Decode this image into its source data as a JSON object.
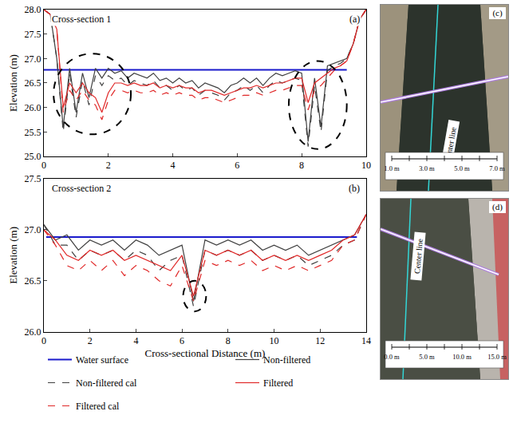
{
  "chart_data": [
    {
      "type": "line",
      "title": "Cross-section 1",
      "panel": "(a)",
      "y_label": "Elevation (m)",
      "xlim": [
        0,
        10
      ],
      "xticks": [
        0,
        2,
        4,
        6,
        8,
        10
      ],
      "ylim": [
        25,
        28
      ],
      "yticks": [
        {
          "value": 25,
          "label": "25.0"
        },
        {
          "value": 25.5,
          "label": "25.5"
        },
        {
          "value": 26,
          "label": "26.0"
        },
        {
          "value": 26.5,
          "label": "26.5"
        },
        {
          "value": 27,
          "label": "27.0"
        },
        {
          "value": 27.5,
          "label": "27.5"
        },
        {
          "value": 28,
          "label": "28.0"
        }
      ],
      "grid": false,
      "legend": "bottom",
      "x": [
        0,
        0.2,
        0.4,
        0.6,
        0.8,
        1.0,
        1.2,
        1.4,
        1.6,
        1.8,
        2.0,
        2.2,
        2.4,
        2.6,
        2.8,
        3.0,
        3.2,
        3.4,
        3.6,
        3.8,
        4.0,
        4.2,
        4.4,
        4.6,
        4.8,
        5.0,
        5.2,
        5.4,
        5.6,
        5.8,
        6.0,
        6.2,
        6.4,
        6.6,
        6.8,
        7.0,
        7.2,
        7.4,
        7.6,
        7.8,
        8.0,
        8.2,
        8.4,
        8.6,
        8.8,
        9.0,
        9.2,
        9.4,
        9.6,
        9.8,
        10.0
      ],
      "series": [
        {
          "name": "Water surface",
          "color": "#1a1acc",
          "line_style": "solid",
          "x": [
            0,
            9.4
          ],
          "values": [
            26.77,
            26.77
          ]
        },
        {
          "name": "Non-filtered",
          "color": "#404040",
          "line_style": "solid",
          "values": [
            28.0,
            27.9,
            27.0,
            25.6,
            26.8,
            25.9,
            26.7,
            26.2,
            26.8,
            26.6,
            26.8,
            26.7,
            26.75,
            26.6,
            26.7,
            26.65,
            26.6,
            26.7,
            26.55,
            26.6,
            26.5,
            26.6,
            26.5,
            26.55,
            26.4,
            26.5,
            26.45,
            26.4,
            26.3,
            26.45,
            26.5,
            26.6,
            26.5,
            26.6,
            26.45,
            26.6,
            26.7,
            26.65,
            26.7,
            26.75,
            26.7,
            25.3,
            26.6,
            25.6,
            26.85,
            26.9,
            26.95,
            27.0,
            27.3,
            27.8,
            28.0
          ]
        },
        {
          "name": "Non-filtered cal",
          "color": "#404040",
          "line_style": "dash",
          "values": [
            28.0,
            27.9,
            27.0,
            25.5,
            26.7,
            25.8,
            26.55,
            26.05,
            26.65,
            26.45,
            26.65,
            26.55,
            26.6,
            26.45,
            26.55,
            26.5,
            26.45,
            26.55,
            26.4,
            26.45,
            26.35,
            26.45,
            26.35,
            26.4,
            26.25,
            26.35,
            26.3,
            26.25,
            26.15,
            26.3,
            26.35,
            26.45,
            26.35,
            26.45,
            26.3,
            26.45,
            26.55,
            26.5,
            26.55,
            26.6,
            26.55,
            25.2,
            26.45,
            25.5,
            26.75,
            26.85,
            26.9,
            27.0,
            27.3,
            27.8,
            28.0
          ]
        },
        {
          "name": "Filtered",
          "color": "#e02828",
          "line_style": "solid",
          "values": [
            28.0,
            27.9,
            27.6,
            26.0,
            26.5,
            26.3,
            26.5,
            26.3,
            26.2,
            25.9,
            26.3,
            26.5,
            26.5,
            26.45,
            26.5,
            26.45,
            26.45,
            26.5,
            26.4,
            26.45,
            26.4,
            26.45,
            26.4,
            26.4,
            26.3,
            26.35,
            26.35,
            26.3,
            26.25,
            26.3,
            26.35,
            26.4,
            26.4,
            26.45,
            26.4,
            26.45,
            26.5,
            26.5,
            26.55,
            26.6,
            26.6,
            26.1,
            26.5,
            26.6,
            26.7,
            26.8,
            26.85,
            26.95,
            27.3,
            27.8,
            28.0
          ]
        },
        {
          "name": "Filtered cal",
          "color": "#e02828",
          "line_style": "dash",
          "values": [
            28.0,
            27.9,
            27.6,
            25.9,
            26.35,
            26.15,
            26.35,
            26.15,
            26.05,
            25.75,
            26.15,
            26.35,
            26.35,
            26.3,
            26.35,
            26.3,
            26.3,
            26.35,
            26.25,
            26.3,
            26.25,
            26.3,
            26.25,
            26.25,
            26.15,
            26.2,
            26.2,
            26.15,
            26.1,
            26.15,
            26.2,
            26.25,
            26.25,
            26.3,
            26.25,
            26.3,
            26.35,
            26.35,
            26.4,
            26.45,
            26.45,
            25.95,
            26.35,
            26.45,
            26.6,
            26.75,
            26.85,
            26.95,
            27.3,
            27.8,
            28.0
          ]
        }
      ],
      "highlights": [
        {
          "x": [
            0.3,
            2.7
          ],
          "y": [
            25.45,
            27.1
          ]
        },
        {
          "x": [
            7.6,
            9.4
          ],
          "y": [
            25.15,
            26.95
          ]
        }
      ]
    },
    {
      "type": "line",
      "title": "Cross-section 2",
      "panel": "(b)",
      "x_label": "Cross-sectional Distance (m)",
      "y_label": "Elevation (m)",
      "xlim": [
        0,
        14
      ],
      "xticks": [
        0,
        2,
        4,
        6,
        8,
        10,
        12,
        14
      ],
      "ylim": [
        26,
        27.5
      ],
      "yticks": [
        {
          "value": 26,
          "label": "26.0"
        },
        {
          "value": 26.5,
          "label": "26.5"
        },
        {
          "value": 27,
          "label": "27.0"
        },
        {
          "value": 27.5,
          "label": "27.5"
        }
      ],
      "grid": false,
      "x": [
        0,
        0.5,
        1,
        1.5,
        2,
        2.5,
        3,
        3.5,
        4,
        4.5,
        5,
        5.5,
        6,
        6.5,
        7,
        7.5,
        8,
        8.5,
        9,
        9.5,
        10,
        10.5,
        11,
        11.5,
        12,
        12.5,
        13,
        13.5,
        14
      ],
      "series": [
        {
          "name": "Water surface",
          "color": "#1a1acc",
          "line_style": "solid",
          "x": [
            0.1,
            13.6
          ],
          "values": [
            26.93,
            26.93
          ]
        },
        {
          "name": "Non-filtered",
          "color": "#404040",
          "line_style": "solid",
          "values": [
            27.05,
            26.9,
            26.95,
            26.8,
            26.9,
            26.85,
            26.9,
            26.8,
            26.9,
            26.85,
            26.75,
            26.8,
            26.85,
            26.3,
            26.9,
            26.85,
            26.9,
            26.85,
            26.9,
            26.8,
            26.85,
            26.8,
            26.85,
            26.75,
            26.8,
            26.85,
            26.9,
            26.95,
            27.15
          ]
        },
        {
          "name": "Non-filtered cal",
          "color": "#404040",
          "line_style": "dash",
          "values": [
            27.05,
            26.85,
            26.85,
            26.7,
            26.8,
            26.75,
            26.8,
            26.7,
            26.8,
            26.75,
            26.6,
            26.7,
            26.75,
            26.25,
            26.8,
            26.75,
            26.8,
            26.75,
            26.8,
            26.7,
            26.75,
            26.7,
            26.75,
            26.65,
            26.7,
            26.75,
            26.85,
            26.9,
            27.15
          ]
        },
        {
          "name": "Filtered",
          "color": "#e02828",
          "line_style": "solid",
          "values": [
            27.0,
            26.9,
            26.75,
            26.7,
            26.8,
            26.75,
            26.8,
            26.7,
            26.75,
            26.7,
            26.65,
            26.6,
            26.75,
            26.35,
            26.8,
            26.75,
            26.8,
            26.75,
            26.8,
            26.7,
            26.75,
            26.7,
            26.75,
            26.7,
            26.75,
            26.8,
            26.9,
            26.95,
            27.15
          ]
        },
        {
          "name": "Filtered cal",
          "color": "#e02828",
          "line_style": "dash",
          "values": [
            27.0,
            26.85,
            26.65,
            26.6,
            26.7,
            26.6,
            26.7,
            26.55,
            26.65,
            26.6,
            26.5,
            26.45,
            26.65,
            26.3,
            26.7,
            26.65,
            26.7,
            26.65,
            26.7,
            26.6,
            26.65,
            26.6,
            26.65,
            26.6,
            26.65,
            26.7,
            26.85,
            26.9,
            27.15
          ]
        }
      ],
      "highlights": [
        {
          "x": [
            6.05,
            7.05
          ],
          "y": [
            26.2,
            26.5
          ]
        }
      ]
    }
  ],
  "photos": [
    {
      "panel": "(c)",
      "line_label": "Center line",
      "scale_labels": [
        "1.0 m",
        "3.0 m",
        "5.0 m",
        "7.0 m"
      ]
    },
    {
      "panel": "(d)",
      "line_label": "Center line",
      "scale_labels": [
        "0.0 m",
        "5.0 m",
        "10.0 m",
        "15.0 m"
      ]
    }
  ]
}
